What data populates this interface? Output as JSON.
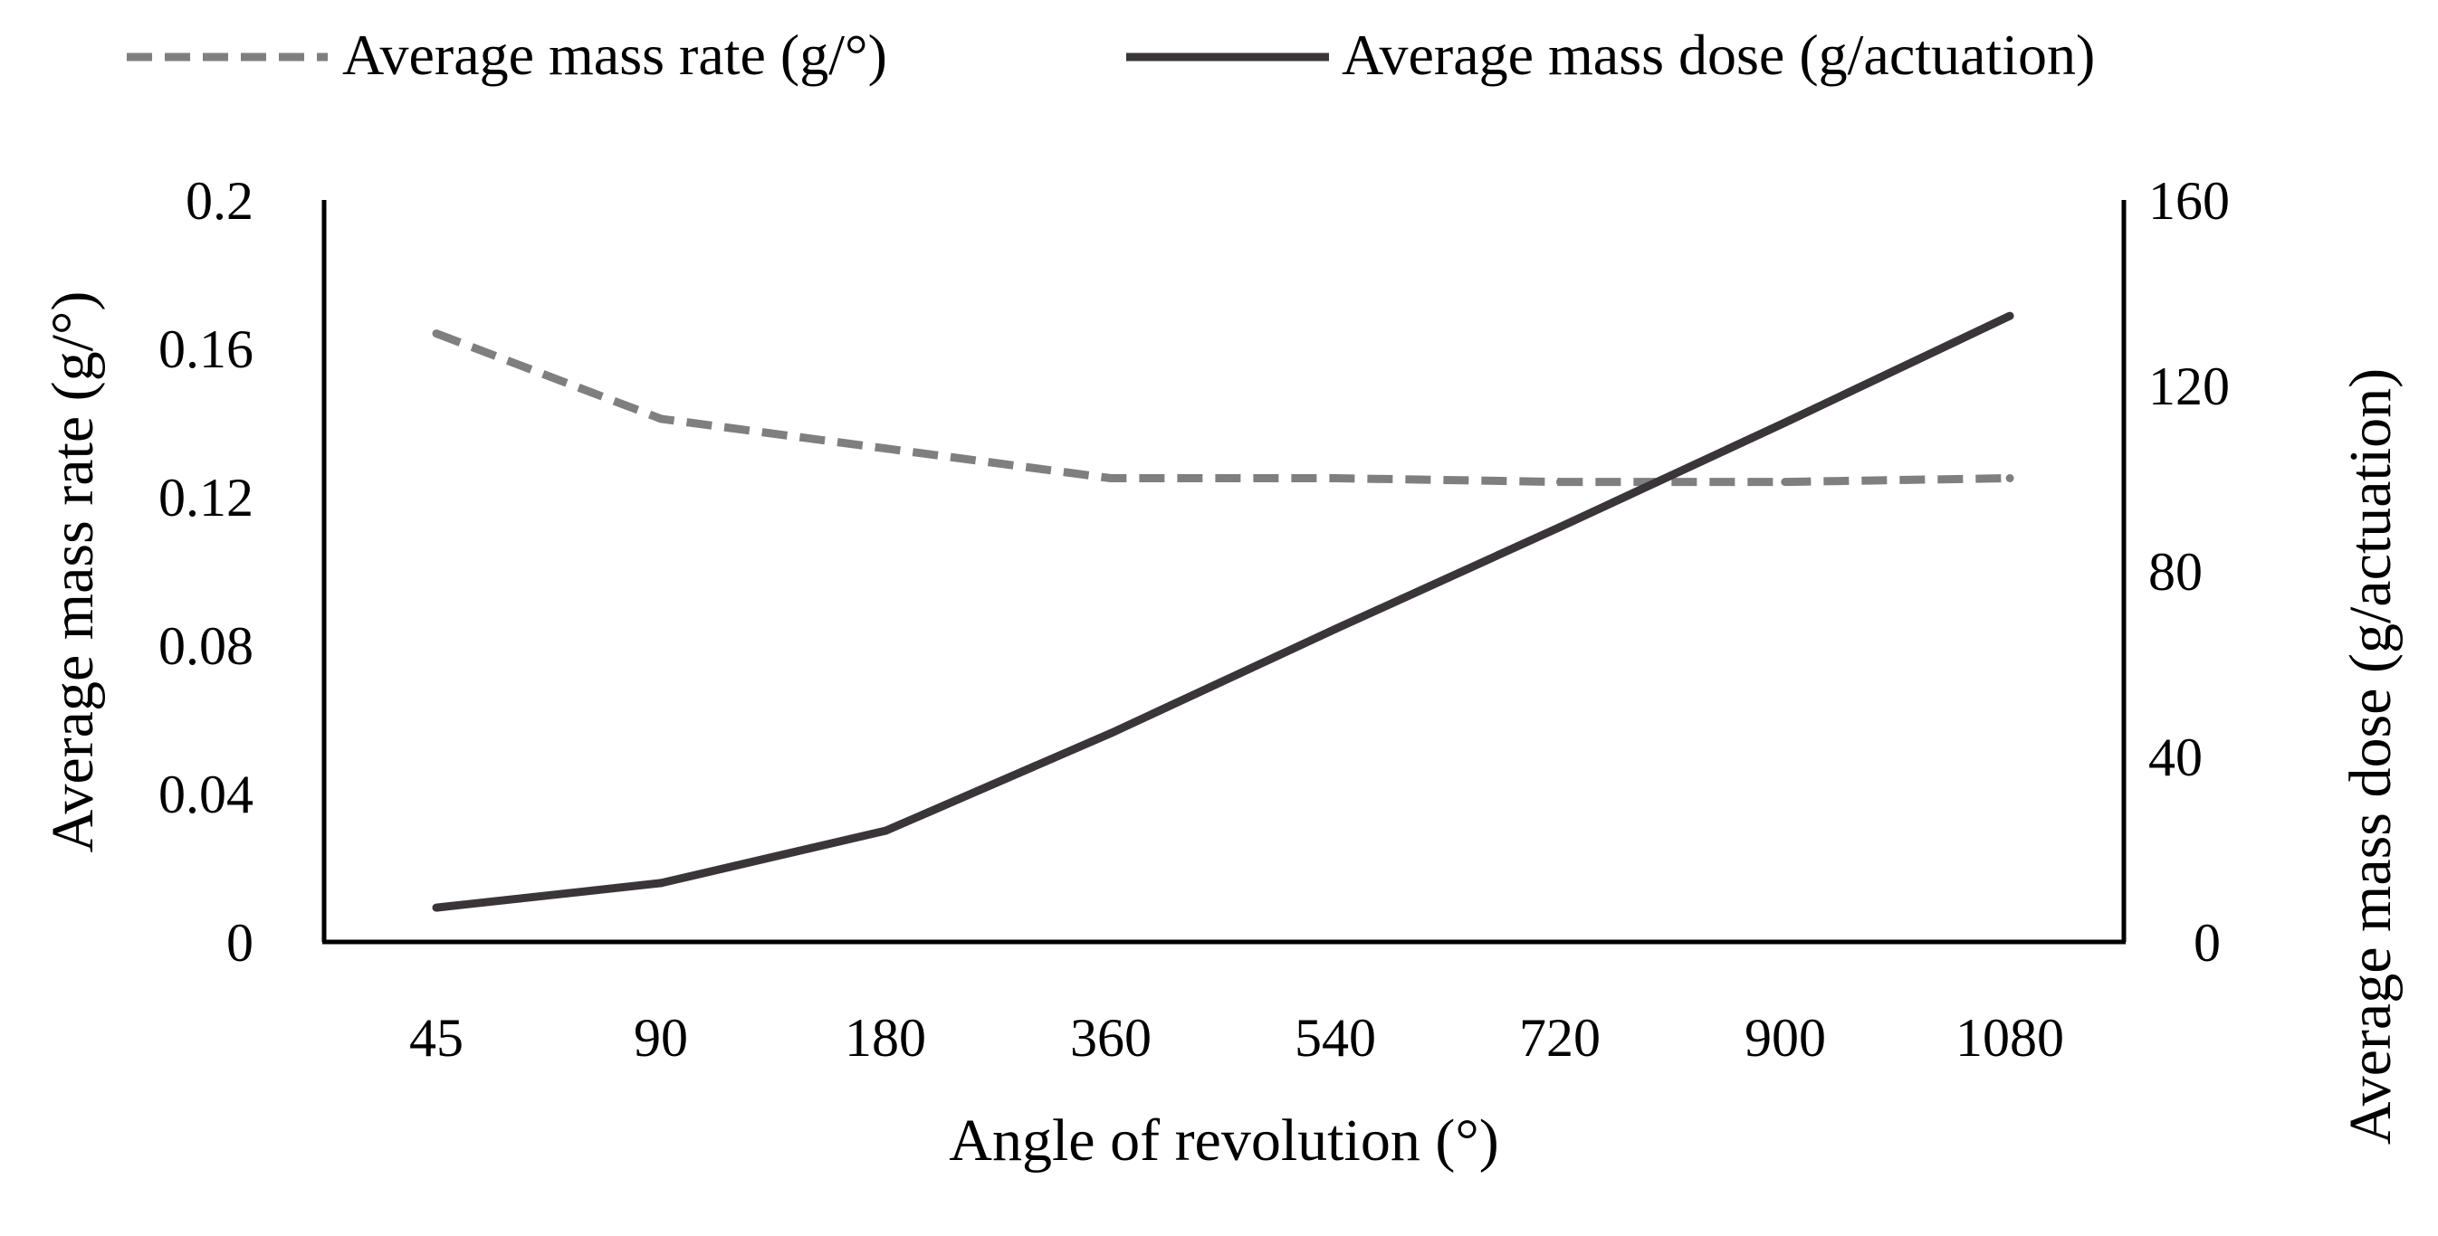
{
  "chart_data": {
    "type": "line",
    "categories": [
      "45",
      "90",
      "180",
      "360",
      "540",
      "720",
      "900",
      "1080"
    ],
    "xlabel": "Angle of revolution (°)",
    "series": [
      {
        "name": "Average mass rate (g/°)",
        "axis": "left",
        "style": "dashed",
        "color": "#7f7f7f",
        "values": [
          0.164,
          0.141,
          0.133,
          0.125,
          0.125,
          0.124,
          0.124,
          0.125
        ]
      },
      {
        "name": "Average mass dose (g/actuation)",
        "axis": "right",
        "style": "solid",
        "color": "#3a3538",
        "values": [
          7.4,
          12.7,
          24.0,
          45.0,
          67.5,
          89.5,
          112.0,
          135.0
        ]
      }
    ],
    "y_left": {
      "label": "Average mass rate (g/°)",
      "ylim": [
        0,
        0.2
      ],
      "ticks": [
        "0",
        "0.04",
        "0.08",
        "0.12",
        "0.16",
        "0.2"
      ]
    },
    "y_right": {
      "label": "Average mass dose (g/actuation)",
      "ylim": [
        0,
        160
      ],
      "ticks": [
        "0",
        "40",
        "80",
        "120",
        "160"
      ]
    },
    "grid": false,
    "legend": "top"
  }
}
